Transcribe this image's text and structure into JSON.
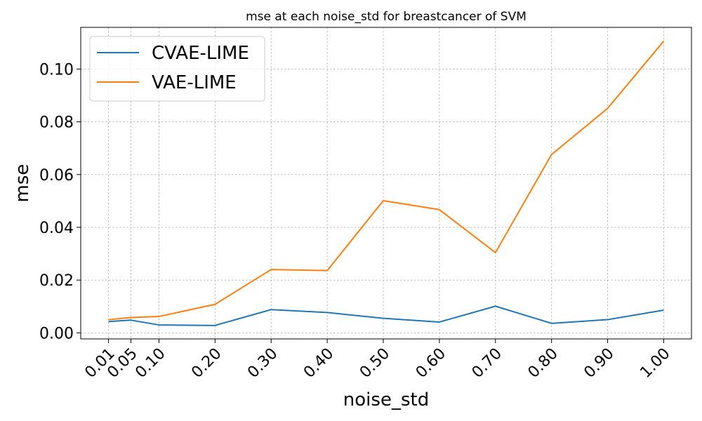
{
  "chart_data": {
    "type": "line",
    "title": "mse at each noise_std for breastcancer of SVM",
    "xlabel": "noise_std",
    "ylabel": "mse",
    "x": [
      0.01,
      0.05,
      0.1,
      0.2,
      0.3,
      0.4,
      0.5,
      0.6,
      0.7,
      0.8,
      0.9,
      1.0
    ],
    "x_tick_labels": [
      "0.01",
      "0.05",
      "0.10",
      "0.20",
      "0.30",
      "0.40",
      "0.50",
      "0.60",
      "0.70",
      "0.80",
      "0.90",
      "1.00"
    ],
    "y_ticks": [
      0.0,
      0.02,
      0.04,
      0.06,
      0.08,
      0.1
    ],
    "y_tick_labels": [
      "0.00",
      "0.02",
      "0.04",
      "0.06",
      "0.08",
      "0.10"
    ],
    "xlim": [
      -0.0395,
      1.0495
    ],
    "ylim": [
      -0.0023,
      0.1158
    ],
    "grid": true,
    "legend_position": "top-left",
    "series": [
      {
        "name": "CVAE-LIME",
        "color": "#1f77b4",
        "values": [
          0.0043,
          0.0048,
          0.003,
          0.0028,
          0.0088,
          0.0077,
          0.0055,
          0.0041,
          0.0101,
          0.0036,
          0.005,
          0.0086
        ]
      },
      {
        "name": "VAE-LIME",
        "color": "#ff7f0e",
        "values": [
          0.005,
          0.0058,
          0.0062,
          0.0108,
          0.024,
          0.0236,
          0.0501,
          0.0467,
          0.0304,
          0.0676,
          0.0851,
          0.1106
        ]
      }
    ]
  }
}
